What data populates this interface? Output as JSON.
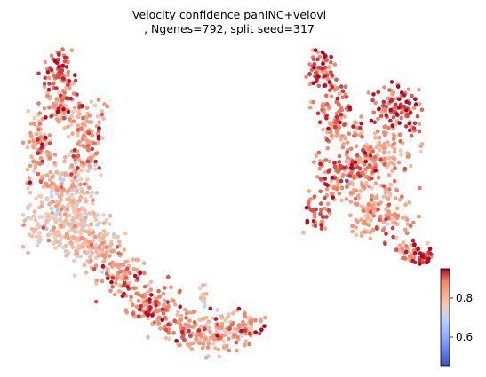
{
  "chart_data": {
    "type": "scatter",
    "title_line1": "Velocity confidence panINC+velovi",
    "title_line2": ", Ngenes=792, split seed=317",
    "xlabel": "",
    "ylabel": "",
    "axes_visible": false,
    "colormap": "coolwarm",
    "color_range": [
      0.45,
      0.95
    ],
    "colorbar": {
      "position": "right",
      "ticks": [
        {
          "value": 0.6,
          "label": "0.6"
        },
        {
          "value": 0.8,
          "label": "0.8"
        }
      ]
    },
    "point_size": "small",
    "outlier_points": [
      {
        "x": 9.4,
        "y": 4.3,
        "confidence": 0.46
      }
    ],
    "clusters": [
      {
        "name": "",
        "cx": -7.6,
        "cy": 9.3,
        "sx": 0.45,
        "sy": 0.5,
        "n": 70,
        "mean": 0.9,
        "sd": 0.04
      },
      {
        "name": "",
        "cx": -7.3,
        "cy": 7.6,
        "sx": 0.6,
        "sy": 0.6,
        "n": 90,
        "mean": 0.87,
        "sd": 0.05
      },
      {
        "name": "",
        "cx": -8.6,
        "cy": 5.8,
        "sx": 0.4,
        "sy": 0.8,
        "n": 90,
        "mean": 0.84,
        "sd": 0.06
      },
      {
        "name": "",
        "cx": -5.8,
        "cy": 6.2,
        "sx": 0.55,
        "sy": 0.9,
        "n": 110,
        "mean": 0.86,
        "sd": 0.05
      },
      {
        "name": "",
        "cx": -7.2,
        "cy": 4.2,
        "sx": 0.9,
        "sy": 0.6,
        "n": 110,
        "mean": 0.78,
        "sd": 0.06
      },
      {
        "name": "",
        "cx": -7.1,
        "cy": 2.4,
        "sx": 1.1,
        "sy": 0.8,
        "n": 260,
        "mean": 0.76,
        "sd": 0.05
      },
      {
        "name": "",
        "cx": -5.3,
        "cy": 1.2,
        "sx": 0.8,
        "sy": 0.6,
        "n": 100,
        "mean": 0.8,
        "sd": 0.05
      },
      {
        "name": "",
        "cx": -3.8,
        "cy": 0.0,
        "sx": 0.7,
        "sy": 0.5,
        "n": 90,
        "mean": 0.86,
        "sd": 0.04
      },
      {
        "name": "",
        "cx": -2.2,
        "cy": -1.2,
        "sx": 0.7,
        "sy": 0.45,
        "n": 90,
        "mean": 0.88,
        "sd": 0.04
      },
      {
        "name": "",
        "cx": -0.2,
        "cy": -2.2,
        "sx": 0.8,
        "sy": 0.45,
        "n": 90,
        "mean": 0.86,
        "sd": 0.05
      },
      {
        "name": "",
        "cx": 1.8,
        "cy": -2.6,
        "sx": 0.9,
        "sy": 0.45,
        "n": 110,
        "mean": 0.8,
        "sd": 0.06
      },
      {
        "name": "",
        "cx": 3.5,
        "cy": -2.3,
        "sx": 0.6,
        "sy": 0.35,
        "n": 50,
        "mean": 0.85,
        "sd": 0.05
      },
      {
        "name": "",
        "cx": 1.0,
        "cy": -0.8,
        "sx": 0.12,
        "sy": 0.4,
        "n": 12,
        "mean": 0.75,
        "sd": 0.05
      },
      {
        "name": "",
        "cx": 7.9,
        "cy": 9.3,
        "sx": 0.45,
        "sy": 0.55,
        "n": 70,
        "mean": 0.9,
        "sd": 0.04
      },
      {
        "name": "",
        "cx": 8.9,
        "cy": 7.2,
        "sx": 0.6,
        "sy": 0.7,
        "n": 100,
        "mean": 0.88,
        "sd": 0.04
      },
      {
        "name": "",
        "cx": 12.4,
        "cy": 7.6,
        "sx": 0.75,
        "sy": 0.55,
        "n": 110,
        "mean": 0.9,
        "sd": 0.04
      },
      {
        "name": "",
        "cx": 11.6,
        "cy": 5.6,
        "sx": 0.9,
        "sy": 0.6,
        "n": 110,
        "mean": 0.83,
        "sd": 0.05
      },
      {
        "name": "",
        "cx": 9.9,
        "cy": 4.8,
        "sx": 0.8,
        "sy": 0.6,
        "n": 120,
        "mean": 0.86,
        "sd": 0.05
      },
      {
        "name": "",
        "cx": 8.3,
        "cy": 4.3,
        "sx": 0.5,
        "sy": 0.6,
        "n": 60,
        "mean": 0.87,
        "sd": 0.05
      },
      {
        "name": "",
        "cx": 7.6,
        "cy": 2.7,
        "sx": 0.4,
        "sy": 0.5,
        "n": 40,
        "mean": 0.86,
        "sd": 0.05
      },
      {
        "name": "",
        "cx": 10.8,
        "cy": 3.0,
        "sx": 0.7,
        "sy": 0.7,
        "n": 100,
        "mean": 0.84,
        "sd": 0.05
      },
      {
        "name": "",
        "cx": 12.2,
        "cy": 2.6,
        "sx": 0.5,
        "sy": 0.5,
        "n": 40,
        "mean": 0.85,
        "sd": 0.05
      },
      {
        "name": "",
        "cx": 12.9,
        "cy": 1.2,
        "sx": 0.45,
        "sy": 0.35,
        "n": 35,
        "mean": 0.86,
        "sd": 0.05
      },
      {
        "name": "",
        "cx": 14.0,
        "cy": 0.9,
        "sx": 0.45,
        "sy": 0.2,
        "n": 35,
        "mean": 0.92,
        "sd": 0.03
      }
    ]
  }
}
